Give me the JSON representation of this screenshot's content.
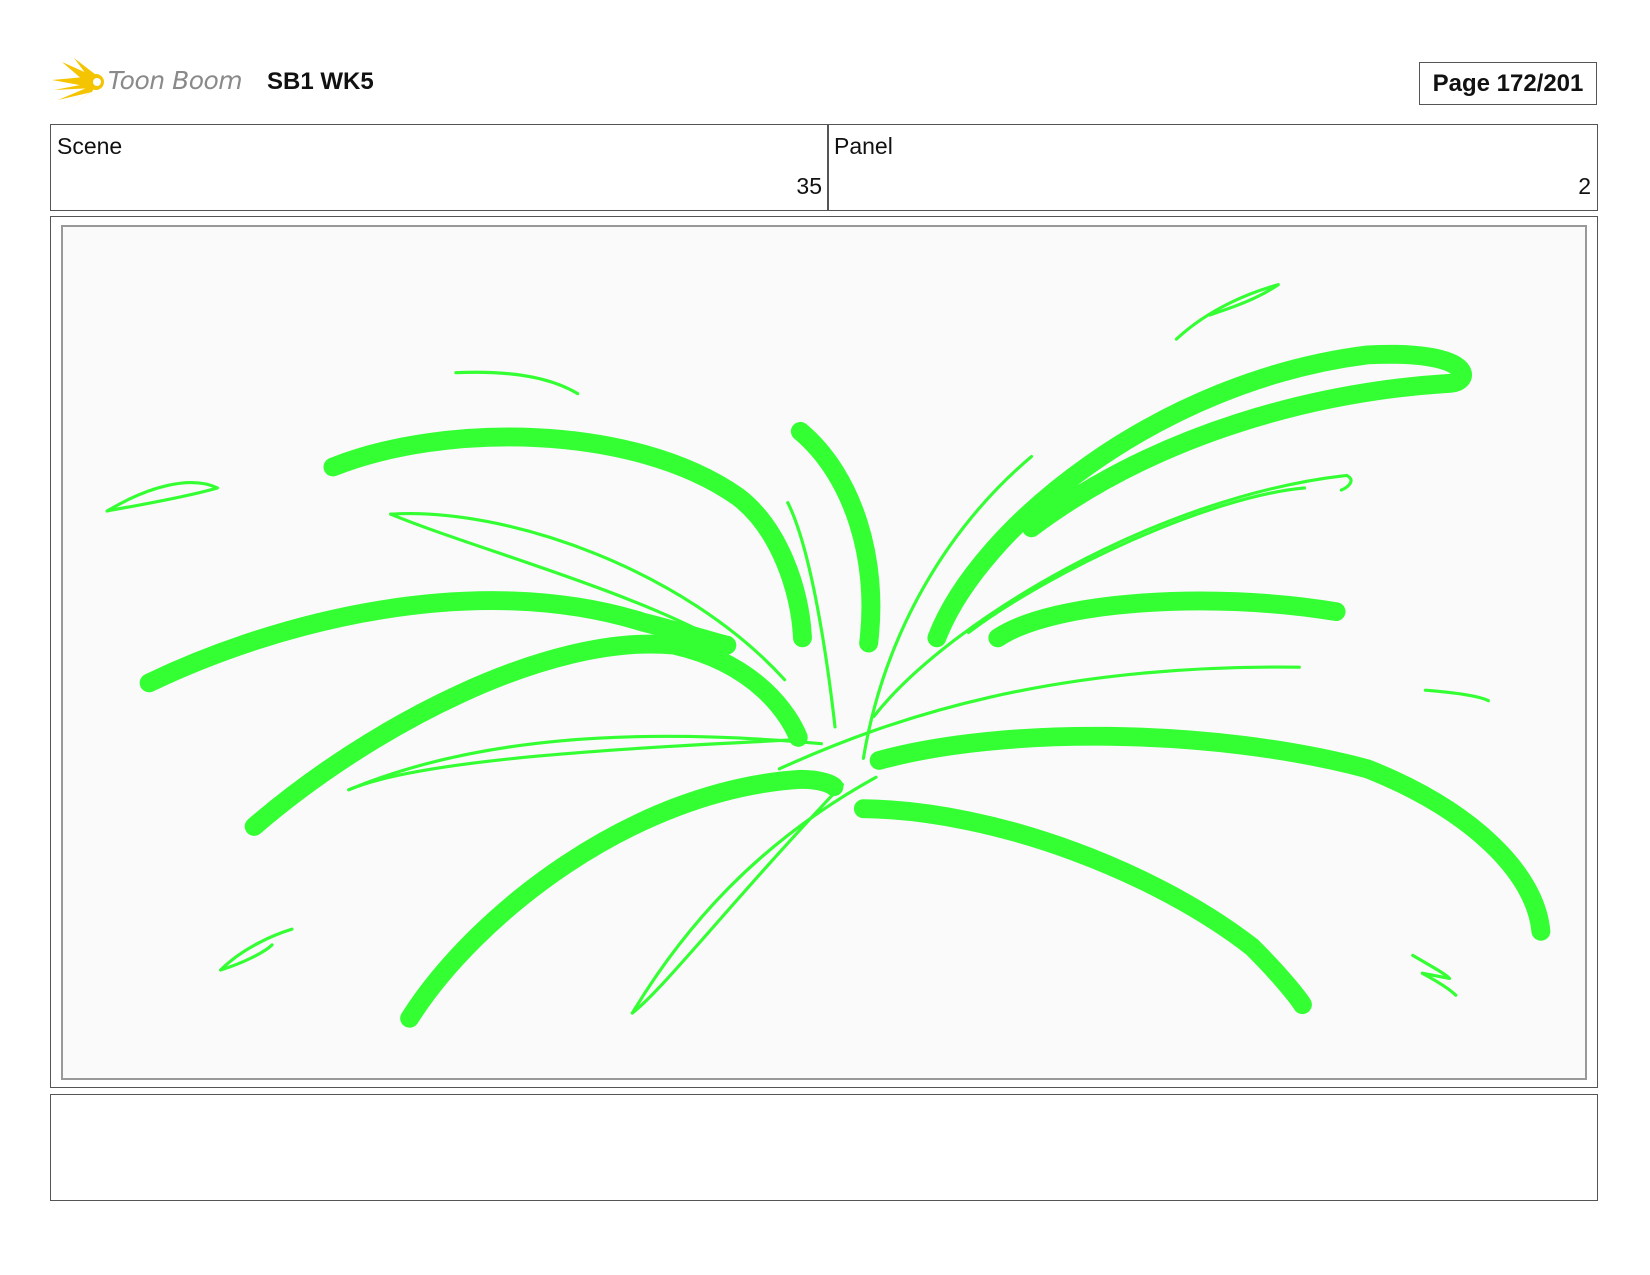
{
  "header": {
    "logo_text": "Toon Boom",
    "project_title": "SB1 WK5",
    "page_label": "Page 172/201"
  },
  "fields": {
    "scene_label": "Scene",
    "scene_value": "35",
    "panel_label": "Panel",
    "panel_value": "2"
  },
  "panel_image": {
    "subject": "green firework burst strokes",
    "stroke_color": "#33ff33"
  },
  "notes": {
    "text": ""
  }
}
